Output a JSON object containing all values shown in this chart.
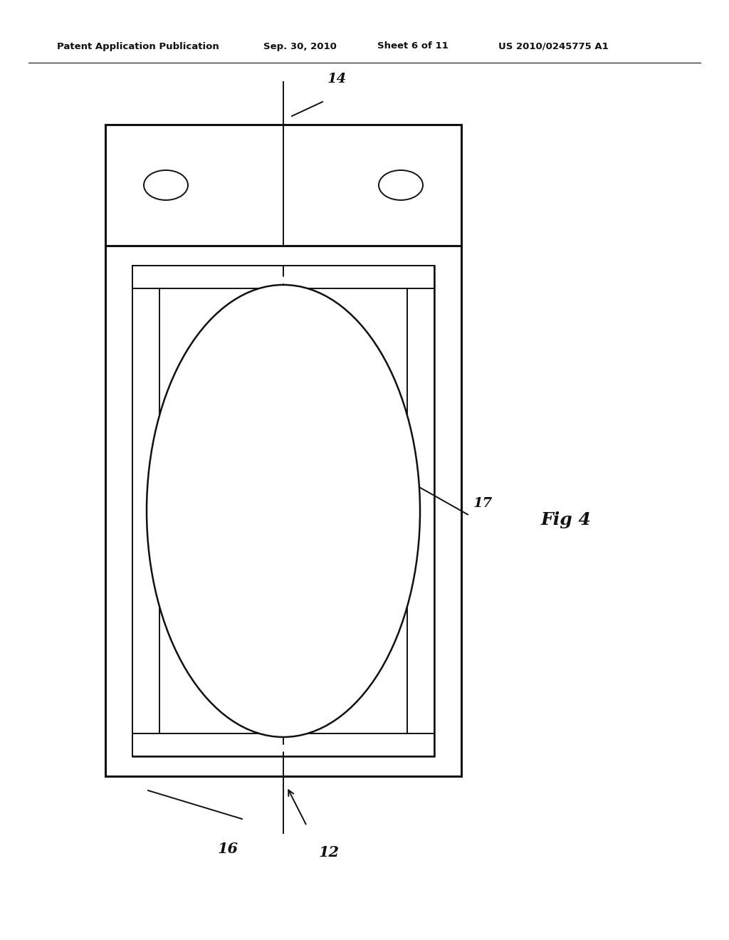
{
  "bg_color": "#ffffff",
  "line_color": "#111111",
  "header_text": "Patent Application Publication",
  "header_date": "Sep. 30, 2010",
  "header_sheet": "Sheet 6 of 11",
  "header_patent": "US 2010/0245775 A1",
  "fig_label": "Fig 4",
  "label_14": "14",
  "label_17": "17",
  "label_16": "16",
  "label_12": "12",
  "page_width": 10.24,
  "page_height": 13.2
}
